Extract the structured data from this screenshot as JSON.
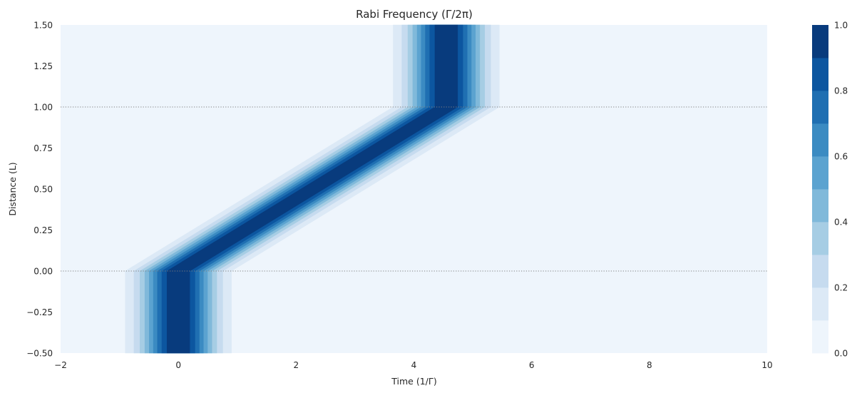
{
  "chart_data": {
    "type": "heatmap",
    "title": "Rabi Frequency (Γ/2π)",
    "xlabel": "Time (1/Γ)",
    "ylabel": "Distance (L)",
    "xlim": [
      -2,
      10
    ],
    "ylim": [
      -0.5,
      1.5
    ],
    "x_ticks": [
      -2,
      0,
      2,
      4,
      6,
      8,
      10
    ],
    "x_tick_labels": [
      "−2",
      "0",
      "2",
      "4",
      "6",
      "8",
      "10"
    ],
    "y_ticks": [
      -0.5,
      -0.25,
      0.0,
      0.25,
      0.5,
      0.75,
      1.0,
      1.25,
      1.5
    ],
    "y_tick_labels": [
      "−0.50",
      "−0.25",
      "0.00",
      "0.25",
      "0.50",
      "0.75",
      "1.00",
      "1.25",
      "1.50"
    ],
    "reference_lines": [
      {
        "orientation": "horizontal",
        "y": 0.0,
        "style": "dotted"
      },
      {
        "orientation": "horizontal",
        "y": 1.0,
        "style": "dotted"
      }
    ],
    "pulse_model": {
      "description_of_shape": "gaussian pulse in time whose centre moves from t=0 at distance 0 to t≈4.55 at distance 1, constant above and below",
      "center_before": 0.0,
      "center_after": 4.55,
      "entry_distance": 0.0,
      "exit_distance": 1.0,
      "sigma": 0.42,
      "peak": 1.0
    },
    "colorbar": {
      "levels": [
        0.0,
        0.1,
        0.2,
        0.3,
        0.4,
        0.5,
        0.6,
        0.7,
        0.8,
        0.9,
        1.0
      ],
      "tick_values": [
        0.0,
        0.2,
        0.4,
        0.6,
        0.8,
        1.0
      ],
      "tick_labels": [
        "0.0",
        "0.2",
        "0.4",
        "0.6",
        "0.8",
        "1.0"
      ],
      "colors": [
        "#eef5fc",
        "#dce9f6",
        "#c6dbef",
        "#a6cde4",
        "#80b9da",
        "#5ba3d0",
        "#3b8bc2",
        "#1f6fb2",
        "#0c56a0",
        "#083b7d"
      ]
    },
    "grid": false
  },
  "style": {
    "background": "#ffffff",
    "axis_text_color": "#262626",
    "reference_line_color": "#7f7f7f"
  }
}
